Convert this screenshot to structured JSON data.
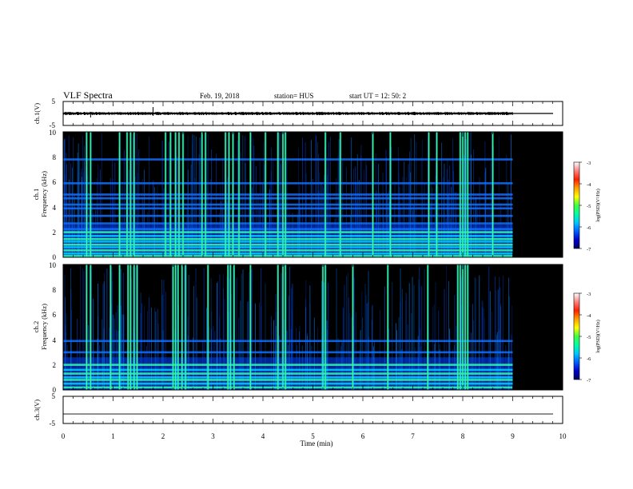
{
  "header": {
    "title": "VLF Spectra",
    "date": "Feb. 19, 2018",
    "station": "station= HUS",
    "start_ut": "start  UT =   12: 50: 2"
  },
  "chart_data": [
    {
      "type": "line",
      "name": "waveform-ch1",
      "ylabel": "ch.1(V)",
      "ylim": [
        -5,
        5
      ],
      "ytick_labels": [
        "5",
        "-5"
      ],
      "xlim": [
        0,
        10
      ],
      "baseline_v": 0,
      "data_end_min": 9.0
    },
    {
      "type": "heatmap",
      "name": "spectrogram-ch1",
      "ylabel_line1": "ch.1",
      "ylabel_line2": "Frequency (kHz)",
      "ylim": [
        0,
        10
      ],
      "ytick_labels": [
        "0",
        "2",
        "4",
        "6",
        "8",
        "10"
      ],
      "xlim": [
        0,
        10
      ],
      "data_end_min": 9.0,
      "background": "#000000",
      "horizontal_bands_khz": [
        0.1,
        0.3,
        0.55,
        0.8,
        1.0,
        1.25,
        1.45,
        1.7,
        2.0,
        2.25,
        2.7,
        3.3,
        3.9,
        4.2,
        4.7,
        5.0,
        5.9,
        7.8
      ],
      "vertical_bursts_min": [
        0.47,
        0.55,
        1.13,
        1.28,
        1.35,
        1.42,
        2.05,
        2.15,
        2.25,
        2.32,
        2.4,
        2.78,
        2.85,
        3.25,
        3.32,
        3.4,
        3.52,
        3.75,
        4.05,
        4.3,
        4.4,
        4.45,
        5.25,
        5.55,
        6.2,
        6.55,
        7.32,
        7.48,
        7.95,
        8.0,
        8.05,
        8.1,
        8.6
      ],
      "colorbar": {
        "label": "log(PSD)(V²/Hz)",
        "range": [
          -7,
          -3
        ],
        "tick_labels": [
          "-3",
          "-4",
          "-5",
          "-6",
          "-7"
        ],
        "colors": [
          "#000060",
          "#0000c8",
          "#0060ff",
          "#00c8ff",
          "#00ffa0",
          "#40ff40",
          "#ffff00",
          "#ffa000",
          "#ff2000",
          "#ff8080",
          "#ffffff"
        ]
      }
    },
    {
      "type": "heatmap",
      "name": "spectrogram-ch2",
      "ylabel_line1": "ch.2",
      "ylabel_line2": "Frequency (kHz)",
      "ylim": [
        0,
        10
      ],
      "ytick_labels": [
        "0",
        "2",
        "4",
        "6",
        "8",
        "10"
      ],
      "xlim": [
        0,
        10
      ],
      "data_end_min": 9.0,
      "background": "#000000",
      "horizontal_bands_khz": [
        0.2,
        0.5,
        0.8,
        1.0,
        1.3,
        1.6,
        2.0,
        3.0,
        3.9
      ],
      "vertical_bursts_min": [
        0.47,
        0.55,
        0.95,
        1.13,
        1.3,
        1.35,
        1.42,
        1.48,
        2.2,
        2.25,
        2.3,
        2.38,
        2.45,
        2.9,
        3.3,
        3.35,
        3.42,
        3.75,
        4.3,
        4.4,
        4.45,
        5.2,
        5.25,
        5.8,
        6.5,
        7.3,
        7.9,
        7.95,
        8.0,
        8.05,
        8.1
      ],
      "colorbar": {
        "label": "log(PSD)(V²/Hz)",
        "range": [
          -7,
          -3
        ],
        "tick_labels": [
          "-3",
          "-4",
          "-5",
          "-6",
          "-7"
        ],
        "colors": [
          "#000060",
          "#0000c8",
          "#0060ff",
          "#00c8ff",
          "#00ffa0",
          "#40ff40",
          "#ffff00",
          "#ffa000",
          "#ff2000",
          "#ff8080",
          "#ffffff"
        ]
      }
    },
    {
      "type": "line",
      "name": "waveform-ch3",
      "ylabel": "ch.3(V)",
      "ylim": [
        -5,
        5
      ],
      "ytick_labels": [
        "5",
        "-5"
      ],
      "xlim": [
        0,
        10
      ],
      "baseline_v": -1.5,
      "xlabel": "Time (min)",
      "xtick_labels": [
        "0",
        "1",
        "2",
        "3",
        "4",
        "5",
        "6",
        "7",
        "8",
        "9",
        "10"
      ]
    }
  ]
}
